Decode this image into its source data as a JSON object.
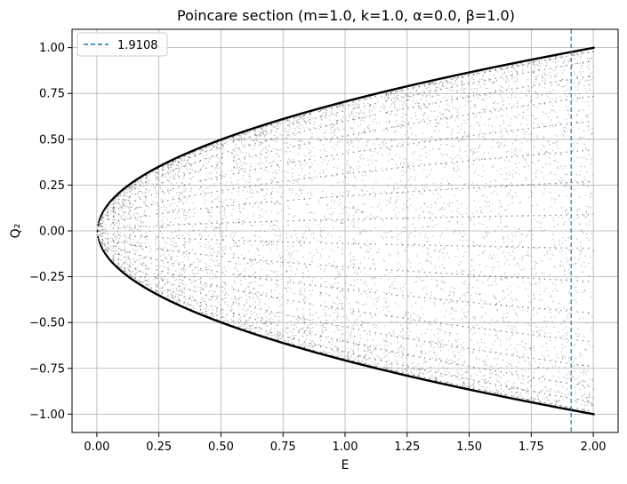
{
  "chart_data": {
    "type": "scatter",
    "title": "Poincare section (m=1.0, k=1.0, α=0.0, β=1.0)",
    "xlabel": "E",
    "ylabel": "Q₂",
    "xlim": [
      -0.1,
      2.1
    ],
    "ylim": [
      -1.1,
      1.1
    ],
    "x_ticks": [
      0.0,
      0.25,
      0.5,
      0.75,
      1.0,
      1.25,
      1.5,
      1.75,
      2.0
    ],
    "x_tick_labels": [
      "0.00",
      "0.25",
      "0.50",
      "0.75",
      "1.00",
      "1.25",
      "1.50",
      "1.75",
      "2.00"
    ],
    "y_ticks": [
      1.0,
      0.75,
      0.5,
      0.25,
      0.0,
      -0.25,
      -0.5,
      -0.75,
      -1.0
    ],
    "y_tick_labels": [
      "1.00",
      "0.75",
      "0.50",
      "0.25",
      "0.00",
      "−0.25",
      "−0.50",
      "−0.75",
      "−1.00"
    ],
    "grid": true,
    "legend_position": "upper-left",
    "envelope": "Q2 = ±sqrt(E/2), E from 0 to 2",
    "point_color": "#000000",
    "bright_gaps_E": [
      0.05,
      0.22,
      0.4,
      0.53,
      0.75,
      0.88,
      1.0,
      1.14,
      1.9108
    ],
    "vline": {
      "x": 1.9108,
      "label": "1.9108",
      "color": "#1f77b4",
      "style": "dashed"
    }
  }
}
